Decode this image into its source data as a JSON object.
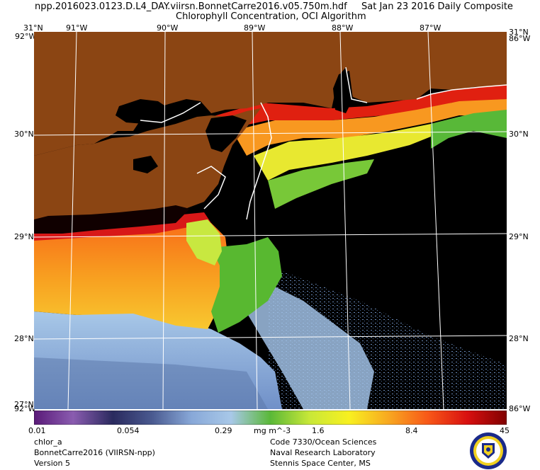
{
  "header": {
    "filename": "npp.2016023.0123.D.L4_DAY.viirsn.BonnetCarre2016.v05.750m.hdf",
    "date": "Sat Jan 23 2016 Daily Composite",
    "subtitle": "Chlorophyll Concentration, OCI Algorithm"
  },
  "map": {
    "lon_labels": [
      "91°W",
      "90°W",
      "89°W",
      "88°W",
      "87°W"
    ],
    "lat_labels": [
      "30°N",
      "29°N",
      "28°N"
    ],
    "corner_top_left": "31°N",
    "corner_top_right": "31°N",
    "corner_left_top": "92°W",
    "corner_right_top": "86°W",
    "corner_bottom_left": "27°N",
    "corner_bottom_left_w": "92°W",
    "corner_bottom_right_w": "86°W",
    "colors": {
      "land": "#8b4513",
      "no_data": "#000000",
      "grid": "#ffffff"
    }
  },
  "colorbar": {
    "ticks": [
      "0.01",
      "0.054",
      "0.29",
      "1.6",
      "8.4",
      "45"
    ],
    "unit": "mg m^-3",
    "stops": [
      "#5a1a78",
      "#8a5cb0",
      "#2a2a5e",
      "#4a5a90",
      "#88a8d8",
      "#a8c8e8",
      "#5ab838",
      "#c8e838",
      "#f8f020",
      "#f8a820",
      "#f85818",
      "#d81010",
      "#800000"
    ]
  },
  "footer": {
    "left": [
      "chlor_a",
      "BonnetCarre2016 (VIIRSN-npp)",
      "Version 5"
    ],
    "right": [
      "Code 7330/Ocean Sciences",
      "Naval Research Laboratory",
      "Stennis Space Center, MS"
    ]
  },
  "logo": {
    "name": "nrl-seal"
  }
}
